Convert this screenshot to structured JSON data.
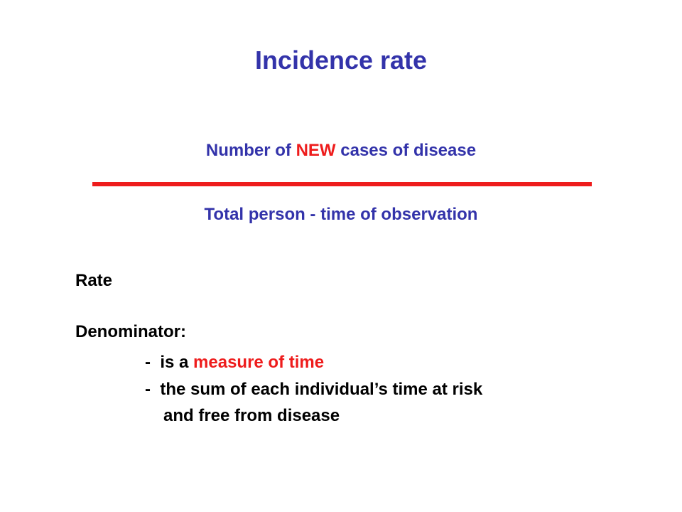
{
  "slide": {
    "title": "Incidence rate",
    "formula": {
      "numerator_prefix": "Number of ",
      "numerator_highlight": "NEW",
      "numerator_suffix": " cases of disease",
      "denominator": "Total person - time of observation"
    },
    "rate_label": "Rate",
    "denominator_label": "Denominator:",
    "bullet1_prefix": "-  is a ",
    "bullet1_highlight": "measure of time",
    "bullet2": "-  the sum of each individual’s time at risk",
    "bullet2_continuation": "and free from disease",
    "colors": {
      "heading_blue": "#3333aa",
      "highlight_red": "#ee1c1c"
    }
  }
}
